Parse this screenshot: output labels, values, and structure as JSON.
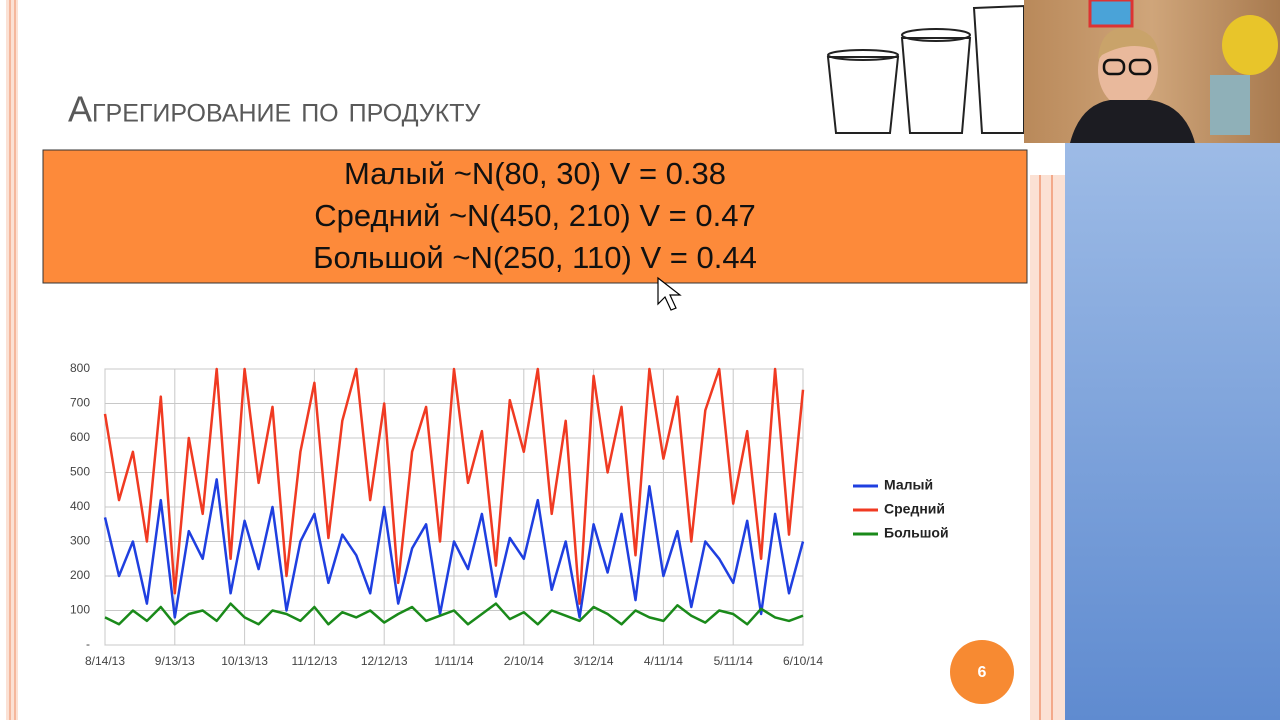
{
  "slide": {
    "title": "Агрегирование по продукту",
    "box_lines": [
      "Малый ~N(80, 30) V = 0.38",
      "Средний ~N(450, 210) V = 0.47",
      "Большой ~N(250, 110) V = 0.44"
    ],
    "slide_number": "6"
  },
  "chart_data": {
    "type": "line",
    "categories": [
      "8/14/13",
      null,
      null,
      null,
      null,
      "9/13/13",
      null,
      null,
      null,
      null,
      "10/13/13",
      null,
      null,
      null,
      null,
      "11/12/13",
      null,
      null,
      null,
      null,
      "12/12/13",
      null,
      null,
      null,
      null,
      "1/11/14",
      null,
      null,
      null,
      null,
      "2/10/14",
      null,
      null,
      null,
      null,
      "3/12/14",
      null,
      null,
      null,
      null,
      "4/11/14",
      null,
      null,
      null,
      null,
      "5/11/14",
      null,
      null,
      null,
      null,
      "6/10/14"
    ],
    "series": [
      {
        "name": "Малый",
        "color": "#1f3fe0",
        "values": [
          370,
          200,
          300,
          120,
          420,
          80,
          330,
          250,
          480,
          150,
          360,
          220,
          400,
          100,
          300,
          380,
          180,
          320,
          260,
          150,
          400,
          120,
          280,
          350,
          90,
          300,
          220,
          380,
          140,
          310,
          250,
          420,
          160,
          300,
          80,
          350,
          210,
          380,
          130,
          460,
          200,
          330,
          110,
          300,
          250,
          180,
          360,
          90,
          380,
          150,
          300
        ]
      },
      {
        "name": "Средний",
        "color": "#f03a22",
        "values": [
          670,
          420,
          560,
          300,
          720,
          150,
          600,
          380,
          800,
          250,
          800,
          470,
          690,
          200,
          560,
          760,
          310,
          650,
          800,
          420,
          700,
          180,
          560,
          690,
          300,
          800,
          470,
          620,
          230,
          710,
          560,
          800,
          380,
          650,
          120,
          780,
          500,
          690,
          260,
          800,
          540,
          720,
          300,
          680,
          800,
          410,
          620,
          250,
          800,
          320,
          740
        ]
      },
      {
        "name": "Большой",
        "color": "#1a8a1a",
        "values": [
          80,
          60,
          100,
          70,
          110,
          60,
          90,
          100,
          70,
          120,
          80,
          60,
          100,
          90,
          70,
          110,
          60,
          95,
          80,
          100,
          65,
          90,
          110,
          70,
          85,
          100,
          60,
          90,
          120,
          75,
          95,
          60,
          100,
          85,
          70,
          110,
          90,
          60,
          100,
          80,
          70,
          115,
          85,
          65,
          100,
          90,
          60,
          105,
          80,
          70,
          85
        ]
      }
    ],
    "ylim": [
      0,
      800
    ],
    "yticks": [
      {
        "value": 0,
        "label": "-"
      },
      100,
      200,
      300,
      400,
      500,
      600,
      700,
      800
    ],
    "grid": true,
    "legend": "right"
  }
}
